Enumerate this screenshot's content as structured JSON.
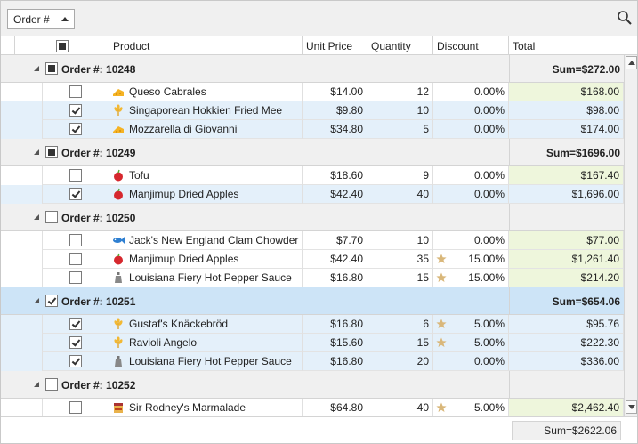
{
  "toolbar": {
    "group_chip_label": "Order #"
  },
  "columns": [
    "Product",
    "Unit Price",
    "Quantity",
    "Discount",
    "Total"
  ],
  "groups": [
    {
      "title": "Order #: 10248",
      "sum": "Sum=$272.00",
      "check": "indeterminate",
      "selected": false,
      "rows": [
        {
          "checked": false,
          "icon": "cheese-icon",
          "product": "Queso Cabrales",
          "price": "$14.00",
          "qty": "12",
          "star": false,
          "discount": "0.00%",
          "total": "$168.00"
        },
        {
          "checked": true,
          "icon": "wheat-icon",
          "product": "Singaporean Hokkien Fried Mee",
          "price": "$9.80",
          "qty": "10",
          "star": false,
          "discount": "0.00%",
          "total": "$98.00"
        },
        {
          "checked": true,
          "icon": "cheese-icon",
          "product": "Mozzarella di Giovanni",
          "price": "$34.80",
          "qty": "5",
          "star": false,
          "discount": "0.00%",
          "total": "$174.00"
        }
      ]
    },
    {
      "title": "Order #: 10249",
      "sum": "Sum=$1696.00",
      "check": "indeterminate",
      "selected": false,
      "rows": [
        {
          "checked": false,
          "icon": "apple-icon",
          "product": "Tofu",
          "price": "$18.60",
          "qty": "9",
          "star": false,
          "discount": "0.00%",
          "total": "$167.40"
        },
        {
          "checked": true,
          "icon": "apple-icon",
          "product": "Manjimup Dried Apples",
          "price": "$42.40",
          "qty": "40",
          "star": false,
          "discount": "0.00%",
          "total": "$1,696.00"
        }
      ]
    },
    {
      "title": "Order #: 10250",
      "sum": "",
      "check": "unchecked",
      "selected": false,
      "rows": [
        {
          "checked": false,
          "icon": "fish-icon",
          "product": "Jack's New England Clam Chowder",
          "price": "$7.70",
          "qty": "10",
          "star": false,
          "discount": "0.00%",
          "total": "$77.00"
        },
        {
          "checked": false,
          "icon": "apple-icon",
          "product": "Manjimup Dried Apples",
          "price": "$42.40",
          "qty": "35",
          "star": true,
          "discount": "15.00%",
          "total": "$1,261.40"
        },
        {
          "checked": false,
          "icon": "bottle-icon",
          "product": "Louisiana Fiery Hot Pepper Sauce",
          "price": "$16.80",
          "qty": "15",
          "star": true,
          "discount": "15.00%",
          "total": "$214.20"
        }
      ]
    },
    {
      "title": "Order #: 10251",
      "sum": "Sum=$654.06",
      "check": "checked",
      "selected": true,
      "rows": [
        {
          "checked": true,
          "icon": "wheat-icon",
          "product": "Gustaf's Knäckebröd",
          "price": "$16.80",
          "qty": "6",
          "star": true,
          "discount": "5.00%",
          "total": "$95.76"
        },
        {
          "checked": true,
          "icon": "wheat-icon",
          "product": "Ravioli Angelo",
          "price": "$15.60",
          "qty": "15",
          "star": true,
          "discount": "5.00%",
          "total": "$222.30"
        },
        {
          "checked": true,
          "icon": "bottle-icon",
          "product": "Louisiana Fiery Hot Pepper Sauce",
          "price": "$16.80",
          "qty": "20",
          "star": false,
          "discount": "0.00%",
          "total": "$336.00"
        }
      ]
    },
    {
      "title": "Order #: 10252",
      "sum": "",
      "check": "unchecked",
      "selected": false,
      "rows": [
        {
          "checked": false,
          "icon": "jar-icon",
          "product": "Sir Rodney's Marmalade",
          "price": "$64.80",
          "qty": "40",
          "star": true,
          "discount": "5.00%",
          "total": "$2,462.40"
        }
      ]
    }
  ],
  "footer": {
    "total_sum": "Sum=$2622.06"
  },
  "colors": {
    "selected_row": "#cde4f7",
    "alt_row": "#e4f0fa",
    "total_cell": "#eef6dc",
    "star": "#d9b77a"
  }
}
